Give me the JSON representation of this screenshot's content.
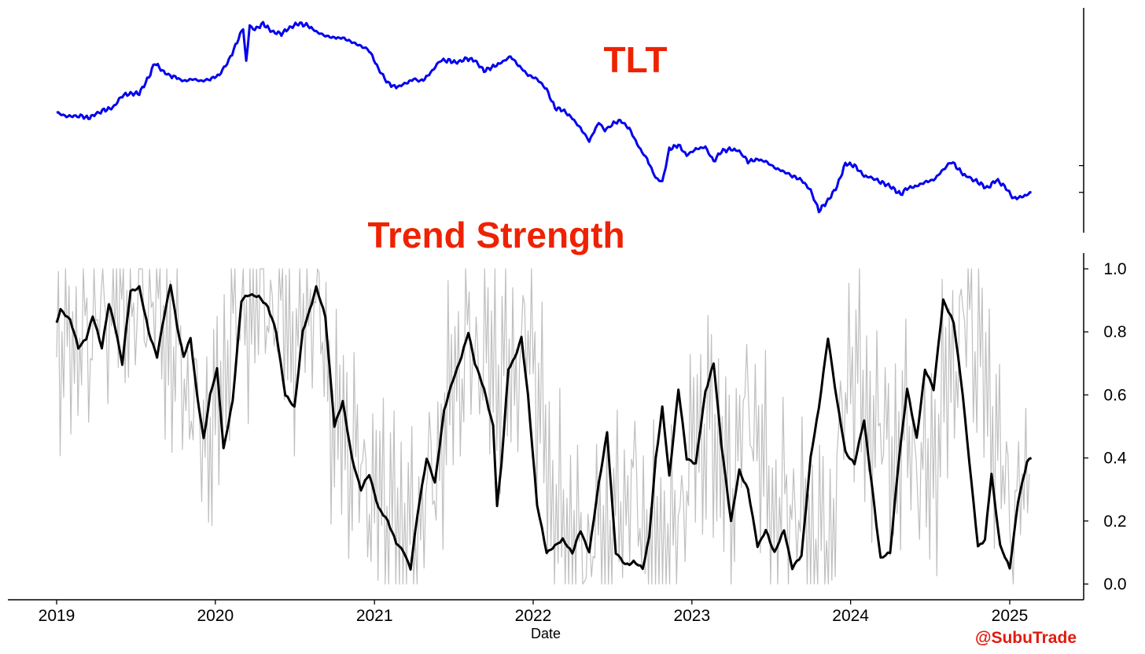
{
  "colors": {
    "price": "#0000ee",
    "raw": "#bfbfbf",
    "smooth": "#000000",
    "title": "#ee2200",
    "watermark": "#e01b0f"
  },
  "watermark": "@SubuTrade",
  "chart_data": [
    {
      "type": "line",
      "title": "TLT",
      "xlabel": "",
      "ylabel": "",
      "x_range": [
        "2019-01-01",
        "2025-03-01"
      ],
      "y_range": [
        0,
        1
      ],
      "y_ticks_unlabeled": [
        0.28,
        0.15
      ],
      "grid": false,
      "legend": "none",
      "series": [
        {
          "color": "#0000ee",
          "x": [
            "2019-01-01",
            "2019-01-20",
            "2019-02-10",
            "2019-03-01",
            "2019-03-15",
            "2019-04-01",
            "2019-04-20",
            "2019-05-10",
            "2019-06-01",
            "2019-06-20",
            "2019-07-10",
            "2019-08-01",
            "2019-08-15",
            "2019-09-01",
            "2019-09-15",
            "2019-10-01",
            "2019-10-20",
            "2019-11-10",
            "2019-12-01",
            "2019-12-20",
            "2020-01-10",
            "2020-02-01",
            "2020-02-20",
            "2020-03-05",
            "2020-03-12",
            "2020-03-20",
            "2020-04-01",
            "2020-04-20",
            "2020-05-10",
            "2020-06-01",
            "2020-06-20",
            "2020-07-10",
            "2020-08-01",
            "2020-08-20",
            "2020-09-10",
            "2020-10-01",
            "2020-10-20",
            "2020-11-10",
            "2020-12-01",
            "2020-12-20",
            "2021-01-10",
            "2021-02-01",
            "2021-02-20",
            "2021-03-15",
            "2021-04-01",
            "2021-04-20",
            "2021-05-10",
            "2021-06-01",
            "2021-06-20",
            "2021-07-10",
            "2021-08-01",
            "2021-08-20",
            "2021-09-10",
            "2021-10-01",
            "2021-10-20",
            "2021-11-10",
            "2021-12-01",
            "2021-12-20",
            "2022-01-10",
            "2022-02-01",
            "2022-02-20",
            "2022-03-10",
            "2022-04-01",
            "2022-04-20",
            "2022-05-10",
            "2022-06-01",
            "2022-06-15",
            "2022-07-01",
            "2022-07-20",
            "2022-08-10",
            "2022-09-01",
            "2022-09-20",
            "2022-10-10",
            "2022-10-25",
            "2022-11-10",
            "2022-12-01",
            "2022-12-20",
            "2023-01-10",
            "2023-02-01",
            "2023-02-20",
            "2023-03-10",
            "2023-04-01",
            "2023-04-20",
            "2023-05-10",
            "2023-06-01",
            "2023-06-20",
            "2023-07-10",
            "2023-08-01",
            "2023-08-20",
            "2023-09-10",
            "2023-10-01",
            "2023-10-20",
            "2023-11-10",
            "2023-12-01",
            "2023-12-20",
            "2024-01-10",
            "2024-02-01",
            "2024-02-20",
            "2024-03-10",
            "2024-04-01",
            "2024-04-25",
            "2024-05-10",
            "2024-06-01",
            "2024-06-20",
            "2024-07-10",
            "2024-08-01",
            "2024-08-20",
            "2024-09-15",
            "2024-10-01",
            "2024-10-20",
            "2024-11-10",
            "2024-12-01",
            "2024-12-20",
            "2025-01-10",
            "2025-02-01",
            "2025-02-20"
          ],
          "y": [
            0.54,
            0.52,
            0.52,
            0.52,
            0.51,
            0.53,
            0.55,
            0.56,
            0.62,
            0.63,
            0.63,
            0.71,
            0.78,
            0.74,
            0.72,
            0.71,
            0.69,
            0.7,
            0.69,
            0.7,
            0.72,
            0.79,
            0.88,
            0.95,
            0.78,
            0.96,
            0.94,
            0.97,
            0.93,
            0.92,
            0.95,
            0.97,
            0.96,
            0.93,
            0.91,
            0.9,
            0.9,
            0.88,
            0.86,
            0.84,
            0.75,
            0.68,
            0.66,
            0.68,
            0.7,
            0.69,
            0.73,
            0.79,
            0.79,
            0.78,
            0.8,
            0.79,
            0.74,
            0.76,
            0.78,
            0.81,
            0.76,
            0.72,
            0.7,
            0.65,
            0.56,
            0.55,
            0.51,
            0.46,
            0.4,
            0.49,
            0.45,
            0.48,
            0.5,
            0.46,
            0.37,
            0.31,
            0.22,
            0.2,
            0.36,
            0.38,
            0.33,
            0.36,
            0.37,
            0.3,
            0.35,
            0.36,
            0.35,
            0.3,
            0.31,
            0.3,
            0.27,
            0.25,
            0.23,
            0.21,
            0.16,
            0.06,
            0.11,
            0.18,
            0.29,
            0.28,
            0.23,
            0.22,
            0.2,
            0.18,
            0.14,
            0.17,
            0.18,
            0.2,
            0.21,
            0.26,
            0.3,
            0.24,
            0.22,
            0.2,
            0.17,
            0.21,
            0.18,
            0.12,
            0.13,
            0.15
          ]
        }
      ]
    },
    {
      "type": "line",
      "title": "Trend Strength",
      "xlabel": "Date",
      "ylabel": "",
      "x_ticks": [
        "2019",
        "2020",
        "2021",
        "2022",
        "2023",
        "2024",
        "2025"
      ],
      "y_ticks": [
        "0.0",
        "0.2",
        "0.4",
        "0.6",
        "0.8",
        "1.0"
      ],
      "x_range": [
        "2019-01-01",
        "2025-03-01"
      ],
      "y_range": [
        0,
        1
      ],
      "grid": false,
      "legend": "none",
      "series": [
        {
          "style": "raw",
          "color": "#bfbfbf",
          "x": [
            "2019-01-01",
            "2019-02-15",
            "2019-04-01",
            "2019-05-15",
            "2019-07-01",
            "2019-08-15",
            "2019-10-01",
            "2019-11-15",
            "2020-01-01",
            "2020-02-15",
            "2020-04-01",
            "2020-05-15",
            "2020-07-01",
            "2020-08-15",
            "2020-10-01",
            "2020-11-15",
            "2021-01-01",
            "2021-02-15",
            "2021-04-01",
            "2021-05-15",
            "2021-07-01",
            "2021-08-15",
            "2021-10-01",
            "2021-11-15",
            "2022-01-01",
            "2022-02-15",
            "2022-04-01",
            "2022-05-15",
            "2022-07-01",
            "2022-08-15",
            "2022-10-01",
            "2022-11-15",
            "2023-01-01",
            "2023-02-15",
            "2023-04-01",
            "2023-05-15",
            "2023-07-01",
            "2023-08-15",
            "2023-10-01",
            "2023-11-15",
            "2024-01-01",
            "2024-02-15",
            "2024-04-01",
            "2024-05-15",
            "2024-07-01",
            "2024-08-15",
            "2024-10-01",
            "2024-11-15",
            "2025-01-01",
            "2025-02-15"
          ],
          "y": [
            0.8,
            0.75,
            0.82,
            0.93,
            0.9,
            0.88,
            0.74,
            0.52,
            0.5,
            0.85,
            0.95,
            0.88,
            0.8,
            0.9,
            0.55,
            0.38,
            0.3,
            0.2,
            0.12,
            0.35,
            0.62,
            0.78,
            0.66,
            0.7,
            0.76,
            0.22,
            0.12,
            0.1,
            0.18,
            0.3,
            0.12,
            0.1,
            0.45,
            0.5,
            0.3,
            0.62,
            0.2,
            0.28,
            0.1,
            0.1,
            0.75,
            0.5,
            0.4,
            0.48,
            0.3,
            0.7,
            0.85,
            0.6,
            0.2,
            0.35
          ]
        },
        {
          "style": "smooth",
          "color": "#000000",
          "x": [
            "2019-01-01",
            "2019-01-10",
            "2019-02-01",
            "2019-02-20",
            "2019-03-10",
            "2019-03-25",
            "2019-04-15",
            "2019-05-01",
            "2019-05-15",
            "2019-06-01",
            "2019-06-20",
            "2019-07-10",
            "2019-08-01",
            "2019-08-20",
            "2019-09-05",
            "2019-09-20",
            "2019-10-05",
            "2019-10-20",
            "2019-11-05",
            "2019-11-20",
            "2019-12-05",
            "2019-12-20",
            "2020-01-05",
            "2020-01-20",
            "2020-02-10",
            "2020-03-01",
            "2020-03-20",
            "2020-04-10",
            "2020-05-01",
            "2020-05-20",
            "2020-06-10",
            "2020-07-01",
            "2020-07-20",
            "2020-08-05",
            "2020-08-20",
            "2020-09-10",
            "2020-10-01",
            "2020-10-20",
            "2020-11-10",
            "2020-12-01",
            "2020-12-20",
            "2021-01-10",
            "2021-02-01",
            "2021-02-20",
            "2021-03-10",
            "2021-03-25",
            "2021-04-10",
            "2021-05-01",
            "2021-05-20",
            "2021-06-10",
            "2021-07-01",
            "2021-07-20",
            "2021-08-05",
            "2021-08-20",
            "2021-09-10",
            "2021-10-01",
            "2021-10-10",
            "2021-10-20",
            "2021-11-05",
            "2021-11-20",
            "2021-12-05",
            "2021-12-20",
            "2022-01-10",
            "2022-02-01",
            "2022-02-20",
            "2022-03-10",
            "2022-04-01",
            "2022-04-20",
            "2022-05-10",
            "2022-06-01",
            "2022-06-20",
            "2022-07-10",
            "2022-08-01",
            "2022-08-20",
            "2022-09-10",
            "2022-09-25",
            "2022-10-10",
            "2022-10-25",
            "2022-11-10",
            "2022-12-01",
            "2022-12-20",
            "2023-01-10",
            "2023-02-01",
            "2023-02-20",
            "2023-03-10",
            "2023-04-01",
            "2023-04-20",
            "2023-05-10",
            "2023-06-01",
            "2023-06-20",
            "2023-07-10",
            "2023-08-01",
            "2023-08-20",
            "2023-09-10",
            "2023-10-01",
            "2023-10-20",
            "2023-11-10",
            "2023-12-01",
            "2023-12-20",
            "2024-01-10",
            "2024-02-01",
            "2024-02-20",
            "2024-03-10",
            "2024-04-01",
            "2024-04-20",
            "2024-05-10",
            "2024-06-01",
            "2024-06-20",
            "2024-07-10",
            "2024-08-01",
            "2024-08-25",
            "2024-09-15",
            "2024-10-05",
            "2024-10-20",
            "2024-11-05",
            "2024-11-20",
            "2024-12-10",
            "2025-01-01",
            "2025-01-20",
            "2025-02-10",
            "2025-02-20"
          ],
          "y": [
            0.83,
            0.87,
            0.84,
            0.75,
            0.78,
            0.85,
            0.75,
            0.89,
            0.82,
            0.7,
            0.93,
            0.94,
            0.8,
            0.72,
            0.85,
            0.95,
            0.82,
            0.72,
            0.78,
            0.6,
            0.46,
            0.6,
            0.68,
            0.43,
            0.58,
            0.9,
            0.92,
            0.91,
            0.88,
            0.8,
            0.6,
            0.56,
            0.8,
            0.87,
            0.94,
            0.85,
            0.5,
            0.58,
            0.4,
            0.3,
            0.35,
            0.24,
            0.2,
            0.13,
            0.1,
            0.05,
            0.22,
            0.4,
            0.32,
            0.55,
            0.65,
            0.72,
            0.8,
            0.7,
            0.62,
            0.5,
            0.25,
            0.38,
            0.68,
            0.72,
            0.78,
            0.6,
            0.25,
            0.1,
            0.12,
            0.14,
            0.1,
            0.17,
            0.1,
            0.32,
            0.48,
            0.1,
            0.06,
            0.07,
            0.05,
            0.15,
            0.4,
            0.56,
            0.34,
            0.62,
            0.4,
            0.38,
            0.61,
            0.7,
            0.44,
            0.2,
            0.36,
            0.3,
            0.12,
            0.17,
            0.1,
            0.17,
            0.05,
            0.09,
            0.4,
            0.56,
            0.78,
            0.58,
            0.42,
            0.38,
            0.52,
            0.3,
            0.08,
            0.1,
            0.38,
            0.62,
            0.46,
            0.68,
            0.62,
            0.9,
            0.83,
            0.6,
            0.32,
            0.12,
            0.14,
            0.35,
            0.12,
            0.05,
            0.26,
            0.39,
            0.4
          ]
        }
      ]
    }
  ]
}
